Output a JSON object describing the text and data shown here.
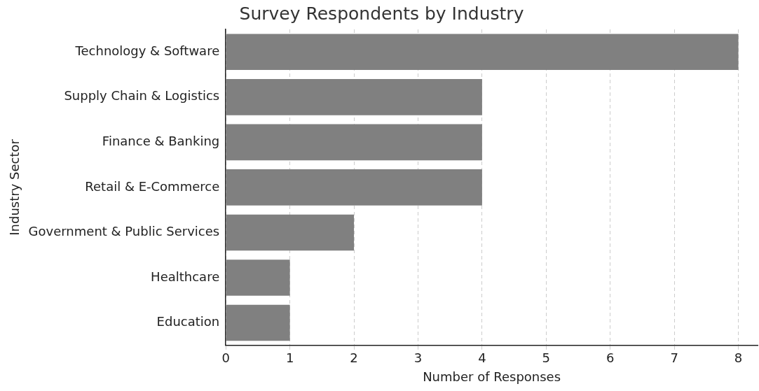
{
  "chart_data": {
    "type": "bar",
    "orientation": "horizontal",
    "title": "Survey Respondents by Industry",
    "xlabel": "Number of Responses",
    "ylabel": "Industry Sector",
    "categories": [
      "Technology & Software",
      "Supply Chain & Logistics",
      "Finance & Banking",
      "Retail & E-Commerce",
      "Government & Public Services",
      "Healthcare",
      "Education"
    ],
    "values": [
      8,
      4,
      4,
      4,
      2,
      1,
      1
    ],
    "color": "#808080",
    "xlim": [
      0,
      8.3
    ],
    "xticks": [
      0,
      1,
      2,
      3,
      4,
      5,
      6,
      7,
      8
    ],
    "grid": "x",
    "legend": false
  }
}
